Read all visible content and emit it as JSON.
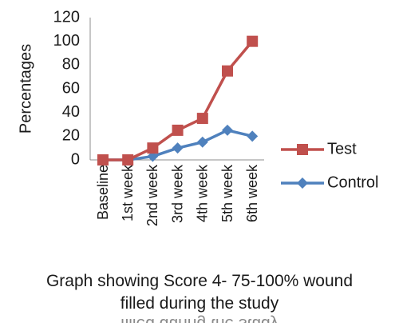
{
  "chart_data": {
    "type": "line",
    "categories": [
      "Baseline",
      "1st week",
      "2nd week",
      "3rd week",
      "4th week",
      "5th week",
      "6th week"
    ],
    "series": [
      {
        "name": "Test",
        "values": [
          0,
          0,
          10,
          25,
          35,
          75,
          100
        ],
        "color": "#c0504d",
        "marker": "square"
      },
      {
        "name": "Control",
        "values": [
          0,
          0,
          3,
          10,
          15,
          25,
          20
        ],
        "color": "#4f81bd",
        "marker": "diamond"
      }
    ],
    "ylabel": "Percentages",
    "xlabel": "",
    "ylim": [
      0,
      120
    ],
    "yticks": [
      0,
      20,
      40,
      60,
      80,
      100,
      120
    ],
    "grid": false,
    "legend_position": "right"
  },
  "caption": {
    "line1": "Graph showing Score 4- 75-100% wound",
    "line2": "filled during the study",
    "mirrored_fragment": "filled during the study"
  }
}
